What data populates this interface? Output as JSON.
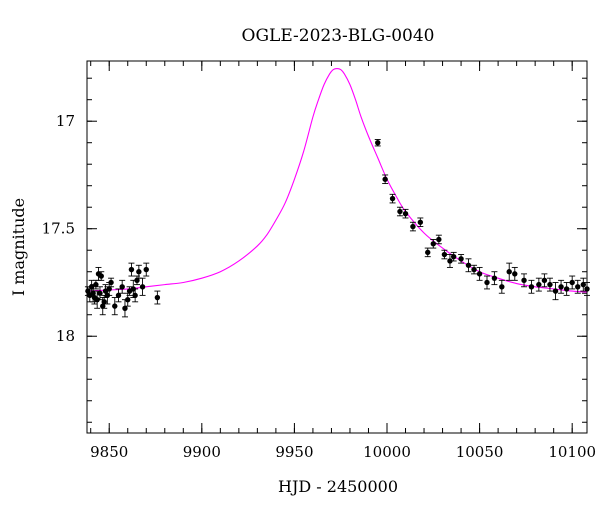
{
  "chart_data": {
    "type": "scatter",
    "title": "OGLE-2023-BLG-0040",
    "xlabel": "HJD - 2450000",
    "ylabel": "I magnitude",
    "xlim": [
      9838,
      10108
    ],
    "ylim": [
      18.45,
      16.72
    ],
    "y_inverted": true,
    "grid": false,
    "x_major_ticks": [
      9850,
      9900,
      9950,
      10000,
      10050,
      10100
    ],
    "x_tick_labels": [
      "9850",
      "9900",
      "9950",
      "10000",
      "10050",
      "10100"
    ],
    "x_minor_step": 10,
    "y_major_ticks": [
      17,
      17.5,
      18
    ],
    "y_tick_labels": [
      "17",
      "17.5",
      "18"
    ],
    "y_minor_step": 0.1,
    "series": [
      {
        "type": "line",
        "color": "#ff00ff",
        "x": [
          9838,
          9850,
          9860,
          9870,
          9880,
          9890,
          9900,
          9910,
          9920,
          9930,
          9935,
          9940,
          9945,
          9950,
          9955,
          9960,
          9963,
          9966,
          9969,
          9971,
          9973,
          9975,
          9977,
          9980,
          9983,
          9986,
          9990,
          9995,
          10000,
          10005,
          10010,
          10020,
          10030,
          10040,
          10050,
          10060,
          10070,
          10080,
          10090,
          10100,
          10108
        ],
        "y": [
          17.79,
          17.785,
          17.78,
          17.77,
          17.76,
          17.75,
          17.73,
          17.7,
          17.65,
          17.58,
          17.53,
          17.46,
          17.38,
          17.27,
          17.14,
          16.98,
          16.9,
          16.83,
          16.78,
          16.76,
          16.755,
          16.76,
          16.78,
          16.83,
          16.9,
          16.98,
          17.07,
          17.17,
          17.27,
          17.35,
          17.42,
          17.52,
          17.59,
          17.65,
          17.7,
          17.73,
          17.755,
          17.77,
          17.78,
          17.79,
          17.795
        ]
      },
      {
        "type": "scatter",
        "color": "#000000",
        "x": [
          9838.5,
          9839.5,
          9840.5,
          9841.3,
          9842,
          9842.8,
          9843.5,
          9844.2,
          9845,
          9845.7,
          9846.5,
          9847.3,
          9848,
          9849,
          9850,
          9851,
          9853,
          9855,
          9857,
          9858.5,
          9860,
          9861,
          9862,
          9863,
          9864,
          9865,
          9866,
          9868,
          9870,
          9876,
          9995,
          9999,
          10003,
          10007,
          10010,
          10014,
          10018,
          10022,
          10025,
          10028,
          10031,
          10034,
          10036,
          10040,
          10044,
          10047,
          10050,
          10054,
          10058,
          10062,
          10066,
          10069,
          10074,
          10078,
          10082,
          10085,
          10088,
          10091,
          10094,
          10097,
          10100,
          10103,
          10106,
          10108
        ],
        "y": [
          17.79,
          17.81,
          17.77,
          17.8,
          17.82,
          17.76,
          17.83,
          17.71,
          17.8,
          17.72,
          17.86,
          17.84,
          17.79,
          17.81,
          17.78,
          17.75,
          17.86,
          17.81,
          17.77,
          17.87,
          17.83,
          17.79,
          17.69,
          17.78,
          17.81,
          17.74,
          17.7,
          17.77,
          17.69,
          17.82,
          17.1,
          17.27,
          17.36,
          17.42,
          17.43,
          17.49,
          17.47,
          17.61,
          17.57,
          17.55,
          17.62,
          17.65,
          17.63,
          17.64,
          17.67,
          17.69,
          17.71,
          17.75,
          17.73,
          17.77,
          17.7,
          17.71,
          17.74,
          17.77,
          17.76,
          17.74,
          17.76,
          17.79,
          17.77,
          17.78,
          17.75,
          17.77,
          17.76,
          17.78
        ],
        "yerr": [
          0.02,
          0.03,
          0.03,
          0.04,
          0.03,
          0.02,
          0.04,
          0.03,
          0.03,
          0.02,
          0.04,
          0.03,
          0.03,
          0.04,
          0.03,
          0.02,
          0.04,
          0.03,
          0.03,
          0.04,
          0.03,
          0.02,
          0.03,
          0.04,
          0.03,
          0.02,
          0.03,
          0.04,
          0.03,
          0.03,
          0.015,
          0.02,
          0.02,
          0.02,
          0.02,
          0.02,
          0.02,
          0.02,
          0.02,
          0.02,
          0.02,
          0.03,
          0.02,
          0.02,
          0.03,
          0.02,
          0.03,
          0.03,
          0.03,
          0.03,
          0.04,
          0.03,
          0.03,
          0.03,
          0.03,
          0.03,
          0.03,
          0.04,
          0.03,
          0.03,
          0.03,
          0.03,
          0.03,
          0.03
        ]
      }
    ]
  }
}
